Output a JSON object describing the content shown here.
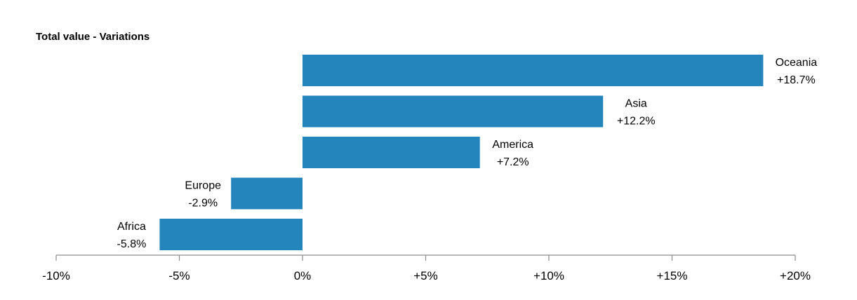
{
  "chart_data": {
    "type": "bar",
    "orientation": "horizontal",
    "title": "Total value - Variations",
    "categories": [
      "Oceania",
      "Asia",
      "America",
      "Europe",
      "Africa"
    ],
    "values": [
      18.7,
      12.2,
      7.2,
      -2.9,
      -5.8
    ],
    "value_labels": [
      "+18.7%",
      "+12.2%",
      "+7.2%",
      "-2.9%",
      "-5.8%"
    ],
    "xlim": [
      -10,
      20
    ],
    "xticks": [
      -10,
      -5,
      0,
      5,
      10,
      15,
      20
    ],
    "xtick_labels": [
      "-10%",
      "-5%",
      "0%",
      "+5%",
      "+10%",
      "+15%",
      "+20%"
    ],
    "xlabel": "",
    "ylabel": "",
    "grid": false,
    "legend": "none",
    "bar_color": "#2485bd"
  }
}
